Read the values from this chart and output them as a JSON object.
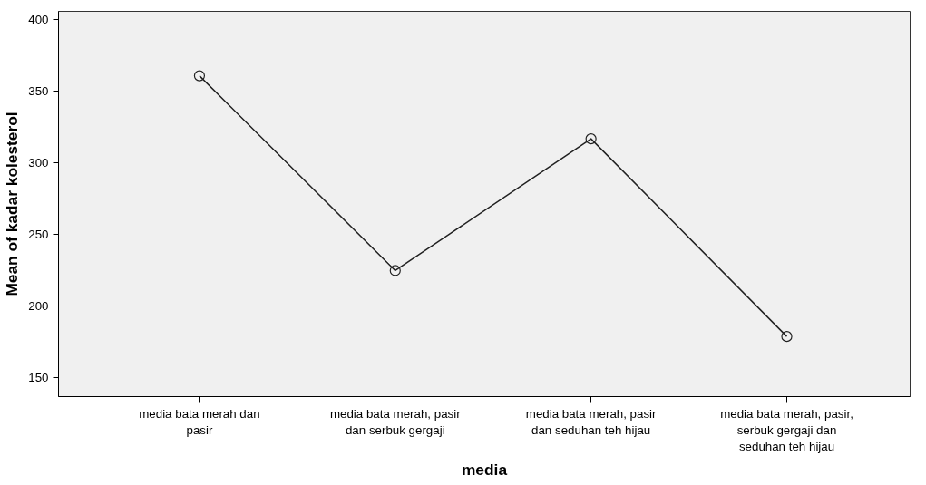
{
  "chart_data": {
    "type": "line",
    "xlabel": "media",
    "ylabel": "Mean of kadar kolesterol",
    "categories": [
      "media bata merah dan pasir",
      "media bata merah, pasir dan serbuk gergaji",
      "media bata merah, pasir dan seduhan teh hijau",
      "media bata merah, pasir, serbuk gergaji dan seduhan teh hijau"
    ],
    "series": [
      {
        "color": "#222222",
        "values": [
          361,
          225,
          317,
          179
        ]
      }
    ],
    "ylim": [
      137,
      406
    ],
    "yticks": [
      150,
      200,
      250,
      300,
      350,
      400
    ],
    "grid": false,
    "marker": "circle",
    "line_style": "solid"
  }
}
